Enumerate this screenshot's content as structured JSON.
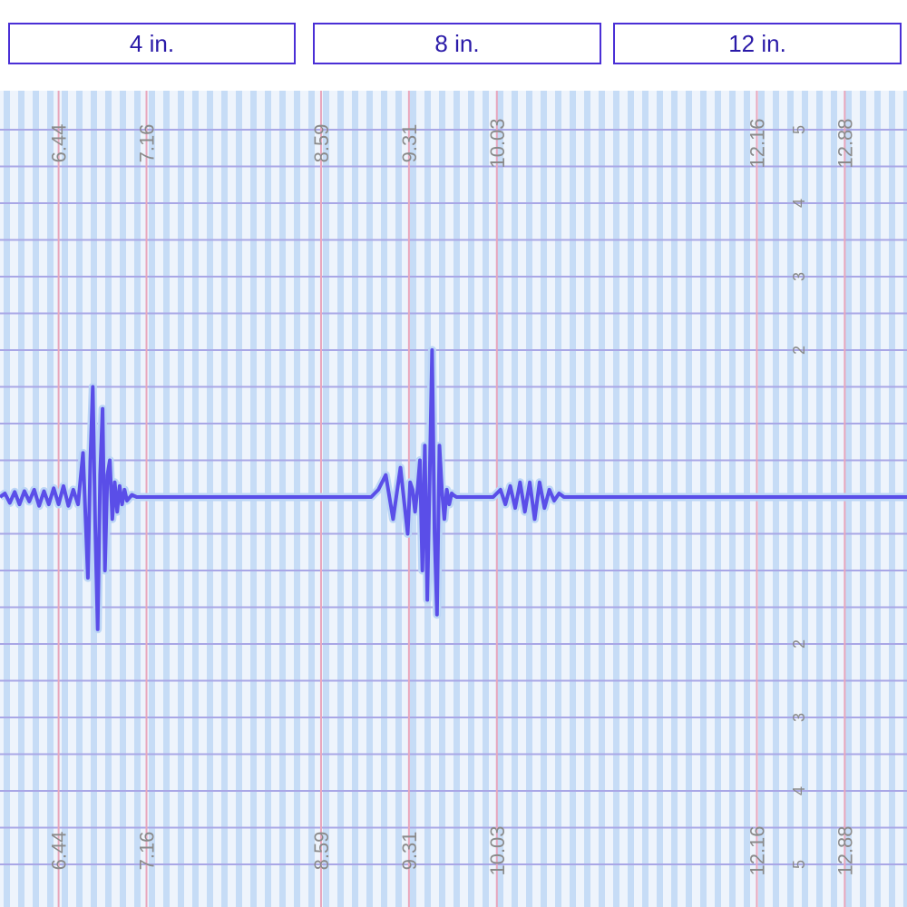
{
  "labels": [
    "4 in.",
    "8 in.",
    "12 in."
  ],
  "colors": {
    "trace": "#5a4ee8",
    "trace_glow": "#bcd6f6",
    "grid_stripe": "#c6dcf6",
    "grid_bg": "#eef4fc",
    "grid_h": "#a9a7e6",
    "marker_line": "#e8a6bc",
    "tick_text": "#8a8a8a"
  },
  "chart_data": {
    "type": "line",
    "title": "",
    "xlabel": "",
    "ylabel": "",
    "xlim": [
      5.96,
      13.39
    ],
    "ylim": [
      -5,
      5
    ],
    "grid": true,
    "x_ticks": [
      {
        "value": 6.44,
        "label": "6.44"
      },
      {
        "value": 7.16,
        "label": "7.16"
      },
      {
        "value": 8.59,
        "label": "8.59"
      },
      {
        "value": 9.31,
        "label": "9.31"
      },
      {
        "value": 10.03,
        "label": "10.03"
      },
      {
        "value": 12.16,
        "label": "12.16"
      },
      {
        "value": 12.88,
        "label": "12.88"
      }
    ],
    "y_ticks_x": 12.55,
    "y_ticks": [
      {
        "value": 5,
        "label": "5"
      },
      {
        "value": 4,
        "label": "4"
      },
      {
        "value": 3,
        "label": "3"
      },
      {
        "value": 2,
        "label": "2"
      },
      {
        "value": -2,
        "label": "2"
      },
      {
        "value": -3,
        "label": "3"
      },
      {
        "value": -4,
        "label": "4"
      },
      {
        "value": -5,
        "label": "5"
      }
    ],
    "series": [
      {
        "x": [
          5.96,
          6.0,
          6.04,
          6.08,
          6.12,
          6.16,
          6.2,
          6.24,
          6.28,
          6.32,
          6.36,
          6.4,
          6.44,
          6.48,
          6.52,
          6.56,
          6.6,
          6.64,
          6.68,
          6.7,
          6.72,
          6.74,
          6.76,
          6.78,
          6.8,
          6.82,
          6.84,
          6.86,
          6.88,
          6.9,
          6.92,
          6.94,
          6.96,
          6.98,
          7.0,
          7.04,
          7.08,
          7.12,
          7.2,
          7.3,
          7.4,
          7.5,
          7.6,
          7.7,
          7.8,
          7.9,
          8.0,
          8.1,
          8.2,
          8.3,
          8.4,
          8.5,
          8.6,
          8.7,
          8.8,
          8.9,
          9.0,
          9.06,
          9.12,
          9.18,
          9.24,
          9.28,
          9.3,
          9.32,
          9.34,
          9.36,
          9.38,
          9.4,
          9.42,
          9.44,
          9.46,
          9.48,
          9.5,
          9.52,
          9.54,
          9.56,
          9.58,
          9.6,
          9.62,
          9.64,
          9.66,
          9.68,
          9.7,
          9.74,
          9.8,
          9.9,
          10.0,
          10.06,
          10.1,
          10.14,
          10.18,
          10.22,
          10.26,
          10.3,
          10.34,
          10.38,
          10.42,
          10.46,
          10.5,
          10.54,
          10.58,
          10.62,
          10.66,
          10.7,
          10.74,
          10.78,
          10.82,
          10.86,
          10.9,
          10.94,
          10.98,
          11.02,
          11.06,
          11.1,
          11.14,
          11.18,
          11.22,
          11.26,
          11.3,
          11.34,
          11.38,
          11.42,
          11.46,
          11.5,
          11.54,
          11.58,
          11.62,
          11.66,
          11.7,
          11.74,
          11.78,
          11.82,
          11.86,
          11.9,
          11.94,
          11.98,
          12.02,
          12.06,
          12.1,
          12.14,
          12.18,
          12.22,
          12.26,
          12.3,
          12.34,
          12.38,
          12.42,
          12.46,
          12.5,
          12.54,
          12.56,
          12.58,
          12.6,
          12.62,
          12.64,
          12.66,
          12.68,
          12.72,
          12.8,
          12.9,
          13.0,
          13.1,
          13.2,
          13.3,
          13.39
        ],
        "y": [
          0.0,
          0.05,
          -0.08,
          0.07,
          -0.1,
          0.08,
          -0.06,
          0.1,
          -0.12,
          0.08,
          -0.1,
          0.12,
          -0.1,
          0.15,
          -0.12,
          0.1,
          -0.1,
          0.6,
          -1.1,
          0.5,
          1.5,
          -0.4,
          -1.8,
          0.3,
          1.2,
          -1.0,
          0.3,
          0.5,
          -0.3,
          0.2,
          -0.2,
          0.15,
          -0.1,
          0.1,
          -0.05,
          0.03,
          0.0,
          0.0,
          0.0,
          0.0,
          0.0,
          0.0,
          0.0,
          0.0,
          0.0,
          0.0,
          0.0,
          0.0,
          0.0,
          0.0,
          0.0,
          0.0,
          0.0,
          0.0,
          0.0,
          0.0,
          0.0,
          0.1,
          0.3,
          -0.3,
          0.4,
          -0.2,
          -0.5,
          0.2,
          0.1,
          -0.2,
          0.1,
          0.5,
          -1.0,
          0.7,
          -1.4,
          0.3,
          2.0,
          -0.5,
          -1.6,
          0.7,
          0.1,
          -0.3,
          0.1,
          -0.1,
          0.05,
          0.02,
          0.0,
          0.0,
          0.0,
          0.0,
          0.0,
          0.1,
          -0.1,
          0.15,
          -0.15,
          0.2,
          -0.2,
          0.2,
          -0.3,
          0.2,
          -0.15,
          0.1,
          -0.05,
          0.05,
          0.0,
          0.0,
          0.0,
          0.0,
          0.0,
          0.0,
          0.0,
          0.0,
          0.0,
          0.0,
          0.0,
          0.0,
          0.0,
          0.0,
          0.0,
          0.0,
          0.0,
          0.0,
          0.0,
          0.0,
          0.0,
          0.0,
          0.0,
          0.0,
          0.0,
          0.0,
          0.0,
          0.0,
          0.0,
          0.0,
          0.0,
          0.0,
          0.0,
          0.0,
          0.0,
          0.0,
          0.0,
          0.0,
          0.0,
          0.0,
          0.0,
          0.0,
          0.0,
          0.0,
          0.0,
          0.0,
          0.0,
          0.0,
          0.0,
          0.0,
          0.0,
          0.0,
          0.0,
          0.0,
          0.0,
          0.0,
          0.0,
          0.0,
          0.0,
          0.0,
          0.0,
          0.0,
          0.0,
          0.0,
          0.0
        ]
      }
    ]
  }
}
